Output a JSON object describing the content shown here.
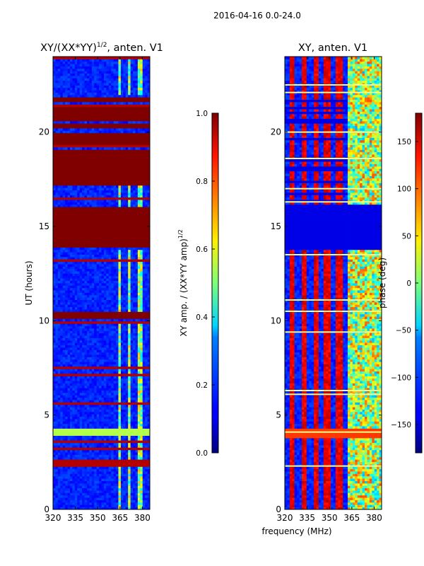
{
  "suptitle": "2016-04-16 0.0-24.0",
  "shared_xlabel": "frequency (MHz)",
  "chart_data": [
    {
      "type": "heatmap",
      "id": "ratio",
      "title_main": "XY/(XX*YY)",
      "title_sup": "1/2",
      "title_tail": ", anten. V1",
      "xlabel": "",
      "ylabel": "UT (hours)",
      "xlim": [
        320,
        385
      ],
      "ylim": [
        0,
        24
      ],
      "xticks": [
        320,
        335,
        350,
        365,
        380
      ],
      "yticks": [
        0,
        5,
        10,
        15,
        20
      ],
      "grid": false,
      "colormap": "jet",
      "colorbar": {
        "label_main": "XY amp. / (XX*YY amp)",
        "label_sup": "1/2",
        "range": [
          0.0,
          1.0
        ],
        "ticks": [
          "0.0",
          "0.2",
          "0.4",
          "0.6",
          "0.8",
          "1.0"
        ]
      },
      "background_value": 0.12,
      "saturated_bands_hours": [
        [
          13.85,
          16.1
        ],
        [
          17.15,
          19.1
        ],
        [
          19.3,
          20.0
        ],
        [
          20.2,
          20.4
        ],
        [
          20.55,
          21.3
        ],
        [
          10.1,
          10.45
        ],
        [
          21.55,
          21.9
        ]
      ],
      "bright_channel_region_mhz": [
        363,
        383
      ],
      "bright_channel_value": 0.55,
      "peak_line_hour": 4.1
    },
    {
      "type": "heatmap",
      "id": "phase",
      "title": "XY, anten. V1",
      "xlabel": "",
      "ylabel": "",
      "xlim": [
        320,
        385
      ],
      "ylim": [
        0,
        24
      ],
      "xticks": [
        320,
        335,
        350,
        365,
        380
      ],
      "yticks": [
        0,
        5,
        10,
        15,
        20
      ],
      "grid": false,
      "colormap": "jet",
      "colorbar": {
        "label": "phase (deg)",
        "range": [
          -180,
          180
        ],
        "ticks": [
          "−150",
          "−100",
          "−50",
          "0",
          "50",
          "100",
          "150"
        ]
      },
      "stripes_mhz": [
        325,
        333,
        341,
        349,
        357
      ],
      "flat_band_hours": [
        13.8,
        16.2
      ],
      "bright_lines_hours": [
        2.3,
        4.1,
        6.1,
        6.3,
        9.4,
        10.5,
        11.1,
        13.5,
        16.3,
        17.0,
        18.6,
        20.0,
        22.1,
        22.5
      ]
    }
  ]
}
